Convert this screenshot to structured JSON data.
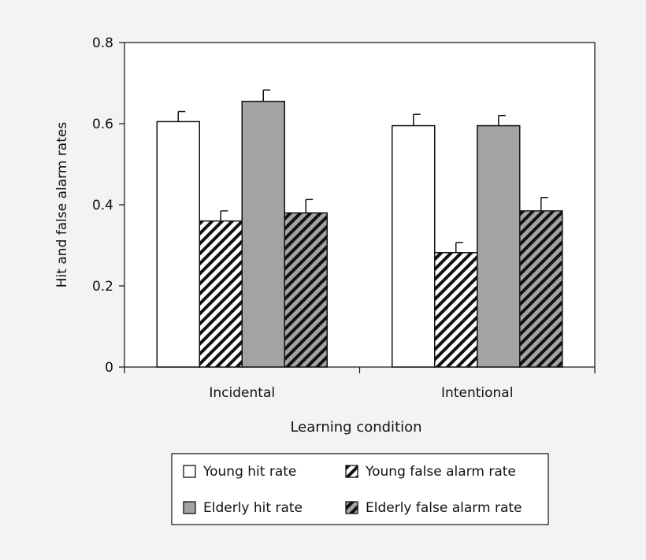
{
  "chart_data": {
    "type": "bar",
    "categories": [
      "Incidental",
      "Intentional"
    ],
    "series": [
      {
        "name": "Young hit rate",
        "values": [
          0.605,
          0.595
        ],
        "errors": [
          0.025,
          0.028
        ],
        "fill": "white"
      },
      {
        "name": "Young false alarm rate",
        "values": [
          0.36,
          0.282
        ],
        "errors": [
          0.025,
          0.025
        ],
        "fill": "hatch-white"
      },
      {
        "name": "Elderly hit rate",
        "values": [
          0.655,
          0.595
        ],
        "errors": [
          0.028,
          0.025
        ],
        "fill": "gray"
      },
      {
        "name": "Elderly false alarm rate",
        "values": [
          0.38,
          0.385
        ],
        "errors": [
          0.033,
          0.033
        ],
        "fill": "hatch-gray"
      }
    ],
    "xlabel": "Learning condition",
    "ylabel": "Hit and false alarm rates",
    "ylim": [
      0,
      0.8
    ],
    "yticks": [
      "0",
      "0.2",
      "0.4",
      "0.6",
      "0.8"
    ],
    "grid": false,
    "legend_position": "bottom",
    "colors": {
      "gray": "#a3a3a3",
      "white": "#ffffff",
      "line": "#111111",
      "background": "#f3f3f3"
    }
  }
}
